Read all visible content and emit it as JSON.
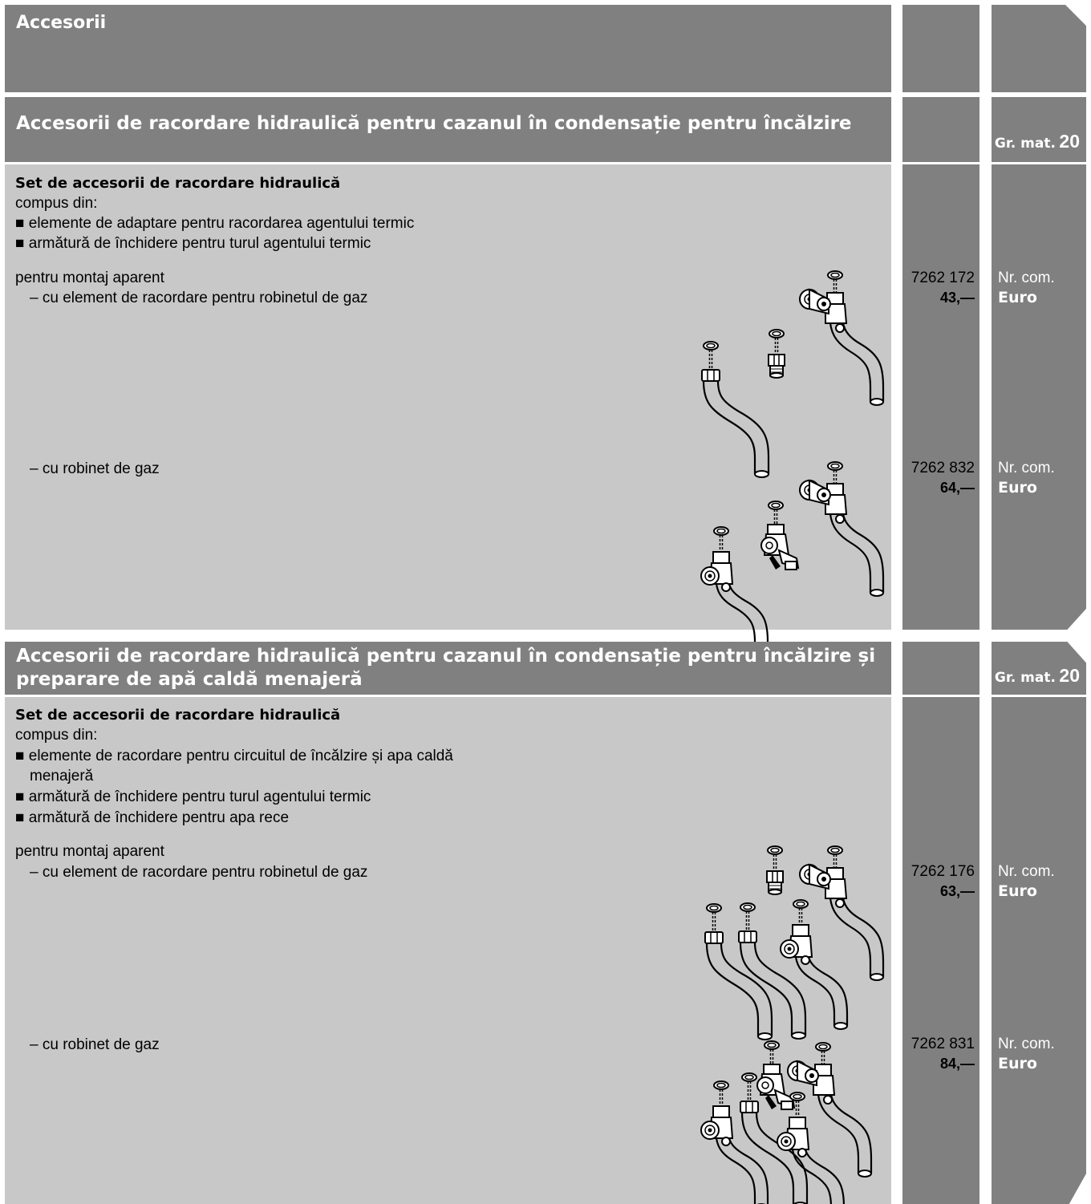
{
  "header": {
    "title": "Accesorii"
  },
  "section1": {
    "title": "Accesorii de racordare hidraulică pentru cazanul în condensație pentru încălzire",
    "gr_mat_label": "Gr. mat.",
    "gr_mat_value": "20",
    "set_title": "Set de accesorii de racordare hidraulică",
    "composed_of": "compus din:",
    "bullets": [
      "■ elemente de adaptare pentru racordarea agentului termic",
      "■ armătură de închidere pentru turul agentului termic"
    ],
    "mount": "pentru montaj aparent",
    "items": [
      {
        "label": "– cu element de racordare pentru robinetul de gaz",
        "code": "7262 172",
        "price": "43,—",
        "unit_nr": "Nr. com.",
        "unit_cur": "Euro"
      },
      {
        "label": "– cu robinet de gaz",
        "code": "7262 832",
        "price": "64,—",
        "unit_nr": "Nr. com.",
        "unit_cur": "Euro"
      }
    ]
  },
  "section2": {
    "title_line1": "Accesorii de racordare hidraulică pentru cazanul în condensație pentru încălzire și",
    "title_line2": "preparare de apă caldă menajeră",
    "gr_mat_label": "Gr. mat.",
    "gr_mat_value": "20",
    "set_title": "Set de accesorii de racordare hidraulică",
    "composed_of": "compus din:",
    "bullets": [
      "■ elemente de racordare pentru circuitul de încălzire și apa caldă",
      "menajeră",
      "■ armătură de închidere pentru turul agentului termic",
      "■ armătură de închidere pentru apa rece"
    ],
    "mount": "pentru montaj aparent",
    "items": [
      {
        "label": "– cu element de racordare pentru robinetul de gaz",
        "code": "7262 176",
        "price": "63,—",
        "unit_nr": "Nr. com.",
        "unit_cur": "Euro"
      },
      {
        "label": "– cu robinet de gaz",
        "code": "7262 831",
        "price": "84,—",
        "unit_nr": "Nr. com.",
        "unit_cur": "Euro"
      }
    ]
  },
  "icons": [
    "fitting-set-illustration",
    "page-corner-tab"
  ]
}
